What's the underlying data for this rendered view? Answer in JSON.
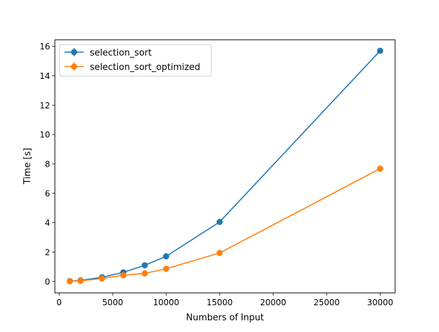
{
  "chart_data": {
    "type": "line",
    "title": "",
    "xlabel": "Numbers of Input",
    "ylabel": "Time [s]",
    "xlim": [
      -400,
      31400
    ],
    "ylim": [
      -0.78,
      16.45
    ],
    "xticks": [
      0,
      5000,
      10000,
      15000,
      20000,
      25000,
      30000
    ],
    "yticks": [
      0,
      2,
      4,
      6,
      8,
      10,
      12,
      14,
      16
    ],
    "grid": false,
    "legend_position": "top-left",
    "markers": "circle",
    "error_bars": true,
    "series": [
      {
        "name": "selection_sort",
        "color": "#1f77b4",
        "x": [
          1000,
          2000,
          4000,
          6000,
          8000,
          10000,
          15000,
          30000
        ],
        "y": [
          0.02,
          0.07,
          0.28,
          0.62,
          1.1,
          1.71,
          4.05,
          15.7
        ]
      },
      {
        "name": "selection_sort_optimized",
        "color": "#ff7f0e",
        "x": [
          1000,
          2000,
          4000,
          6000,
          8000,
          10000,
          15000,
          30000
        ],
        "y": [
          0.01,
          0.04,
          0.2,
          0.42,
          0.55,
          0.86,
          1.94,
          7.68
        ]
      }
    ]
  }
}
